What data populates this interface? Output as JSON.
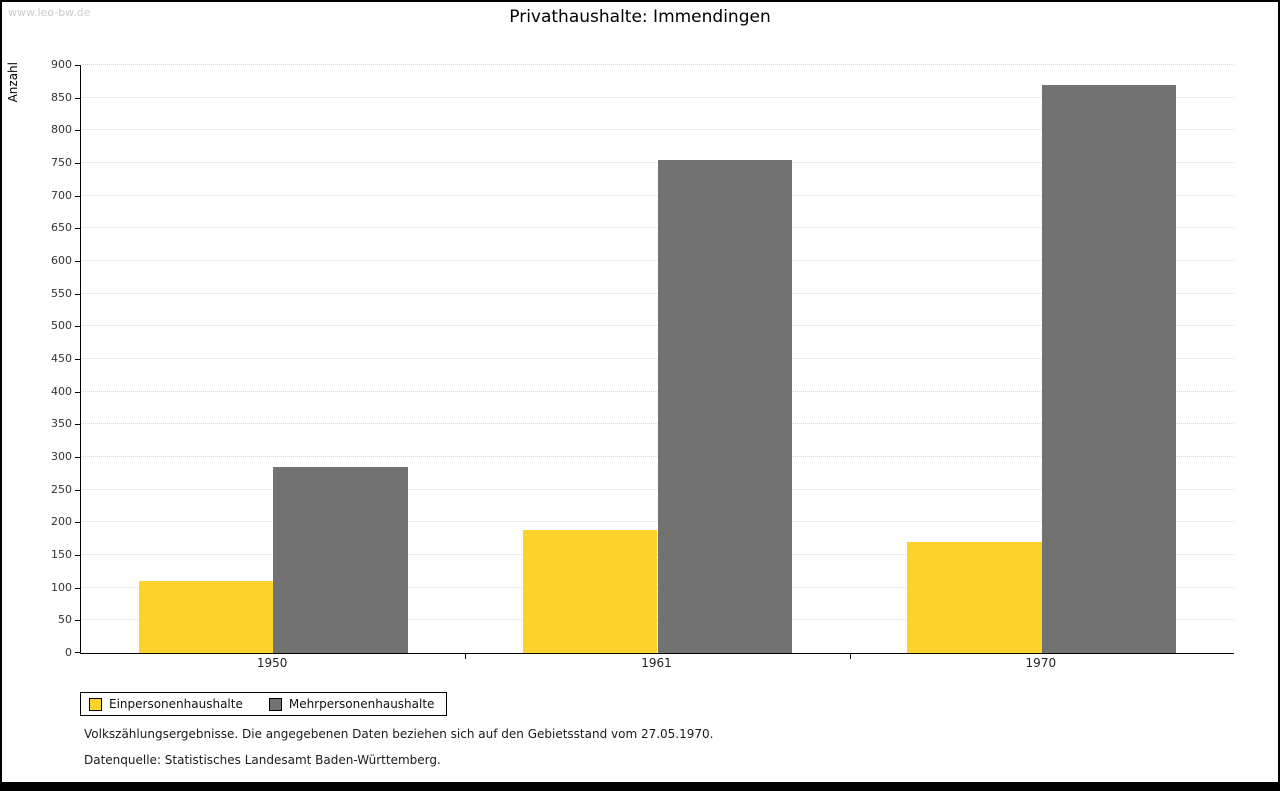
{
  "watermark": "www.leo-bw.de",
  "chart_data": {
    "type": "bar",
    "title": "Privathaushalte: Immendingen",
    "ylabel": "Anzahl",
    "categories": [
      "1950",
      "1961",
      "1970"
    ],
    "series": [
      {
        "name": "Einpersonenhaushalte",
        "color": "#FBD32B",
        "values": [
          110,
          188,
          170
        ]
      },
      {
        "name": "Mehrpersonenhaushalte",
        "color": "#727272",
        "values": [
          285,
          755,
          870
        ]
      }
    ],
    "ylim": [
      0,
      900
    ],
    "ytick_step": 50,
    "grid": true,
    "legend_position": "bottom-left"
  },
  "footnotes": {
    "line1": "Volkszählungsergebnisse. Die angegebenen Daten beziehen sich auf den Gebietsstand vom 27.05.1970.",
    "line2": "Datenquelle: Statistisches Landesamt Baden-Württemberg."
  }
}
